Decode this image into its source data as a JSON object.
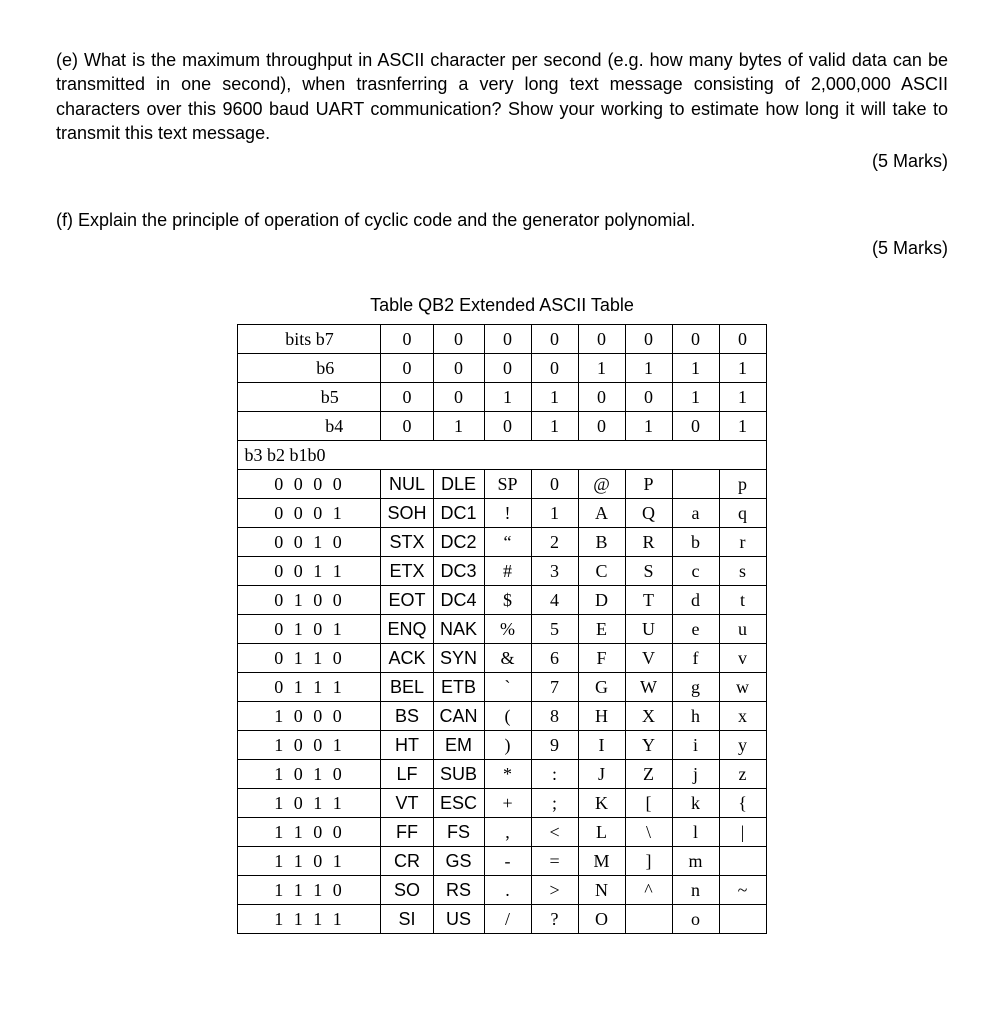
{
  "question_e": {
    "label": "(e)",
    "text": "What is the maximum throughput in ASCII character per second (e.g. how many bytes of valid data can be transmitted in one second), when trasnferring a very long text message consisting of 2,000,000 ASCII characters over this 9600 baud UART communication? Show your working to estimate how long it will take to transmit this text message.",
    "marks": "(5 Marks)"
  },
  "question_f": {
    "label": "(f)",
    "text": "Explain the principle of operation of cyclic code and the generator polynomial.",
    "marks": "(5 Marks)"
  },
  "table": {
    "caption": "Table QB2   Extended ASCII Table",
    "header_rows": [
      {
        "label": "bits  b7",
        "cells": [
          "0",
          "0",
          "0",
          "0",
          "0",
          "0",
          "0",
          "0"
        ]
      },
      {
        "label": "b6",
        "cells": [
          "0",
          "0",
          "0",
          "0",
          "1",
          "1",
          "1",
          "1"
        ]
      },
      {
        "label": "b5",
        "cells": [
          "0",
          "0",
          "1",
          "1",
          "0",
          "0",
          "1",
          "1"
        ]
      },
      {
        "label": "b4",
        "cells": [
          "0",
          "1",
          "0",
          "1",
          "0",
          "1",
          "0",
          "1"
        ]
      }
    ],
    "bits_subhead": "b3 b2 b1b0",
    "rows": [
      {
        "bits": "0  0 0 0",
        "c": [
          "NUL",
          "DLE",
          "SP",
          "0",
          "@",
          "P",
          "",
          "p"
        ]
      },
      {
        "bits": "0  0 0 1",
        "c": [
          "SOH",
          "DC1",
          "!",
          "1",
          "A",
          "Q",
          "a",
          "q"
        ]
      },
      {
        "bits": "0  0 1 0",
        "c": [
          "STX",
          "DC2",
          "“",
          "2",
          "B",
          "R",
          "b",
          "r"
        ]
      },
      {
        "bits": "0  0 1 1",
        "c": [
          "ETX",
          "DC3",
          "#",
          "3",
          "C",
          "S",
          "c",
          "s"
        ]
      },
      {
        "bits": "0  1 0 0",
        "c": [
          "EOT",
          "DC4",
          "$",
          "4",
          "D",
          "T",
          "d",
          "t"
        ]
      },
      {
        "bits": "0  1 0 1",
        "c": [
          "ENQ",
          "NAK",
          "%",
          "5",
          "E",
          "U",
          "e",
          "u"
        ]
      },
      {
        "bits": "0  1 1 0",
        "c": [
          "ACK",
          "SYN",
          "&",
          "6",
          "F",
          "V",
          "f",
          "v"
        ]
      },
      {
        "bits": "0  1 1 1",
        "c": [
          "BEL",
          "ETB",
          "`",
          "7",
          "G",
          "W",
          "g",
          "w"
        ]
      },
      {
        "bits": "1  0 0 0",
        "c": [
          "BS",
          "CAN",
          "(",
          "8",
          "H",
          "X",
          "h",
          "x"
        ]
      },
      {
        "bits": "1  0 0 1",
        "c": [
          "HT",
          "EM",
          ")",
          "9",
          "I",
          "Y",
          "i",
          "y"
        ]
      },
      {
        "bits": "1  0 1 0",
        "c": [
          "LF",
          "SUB",
          "*",
          ":",
          "J",
          "Z",
          "j",
          "z"
        ]
      },
      {
        "bits": "1  0 1 1",
        "c": [
          "VT",
          "ESC",
          "+",
          ";",
          "K",
          "[",
          "k",
          "{"
        ]
      },
      {
        "bits": "1  1 0 0",
        "c": [
          "FF",
          "FS",
          ",",
          "<",
          "L",
          "\\",
          "l",
          "|"
        ]
      },
      {
        "bits": "1  1 0 1",
        "c": [
          "CR",
          "GS",
          "-",
          "=",
          "M",
          "]",
          "m",
          ""
        ]
      },
      {
        "bits": "1  1 1 0",
        "c": [
          "SO",
          "RS",
          ".",
          ">",
          "N",
          "^",
          "n",
          "~"
        ]
      },
      {
        "bits": "1  1 1 1",
        "c": [
          "SI",
          "US",
          "/",
          "?",
          "O",
          "",
          "o",
          ""
        ]
      }
    ]
  }
}
